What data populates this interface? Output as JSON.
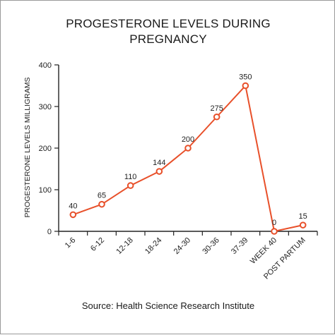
{
  "chart_data": {
    "type": "line",
    "title_lines": [
      "PROGESTERONE LEVELS DURING",
      "PREGNANCY"
    ],
    "ylabel": "PROGESTERONE LEVELS MILLIGRAMS",
    "xlabel": "",
    "categories": [
      "1-6",
      "6-12",
      "12-18",
      "18-24",
      "24-30",
      "30-36",
      "37-39",
      "WEEK 40",
      "POST PARTUM"
    ],
    "series": [
      {
        "values": [
          40,
          65,
          110,
          144,
          200,
          275,
          350,
          0,
          15
        ]
      }
    ],
    "ylim": [
      0,
      400
    ],
    "yticks": [
      0,
      100,
      200,
      300,
      400
    ],
    "grid": false,
    "line_color": "#e8502a",
    "source": "Source: Health Science Research Institute"
  }
}
